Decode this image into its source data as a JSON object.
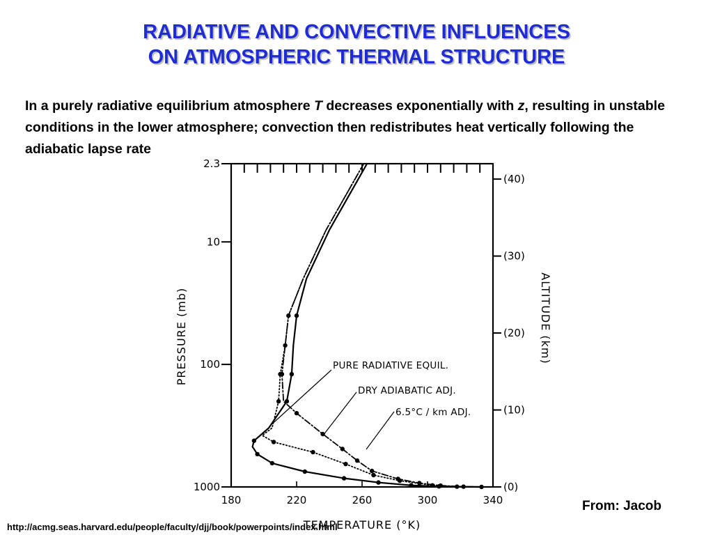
{
  "title": {
    "line1": "RADIATIVE AND CONVECTIVE INFLUENCES",
    "line2": "ON ATMOSPHERIC THERMAL STRUCTURE"
  },
  "intro": {
    "part1": "In a purely radiative equilibrium atmosphere ",
    "var_t": "T",
    "part2": " decreases exponentially with ",
    "var_z": "z",
    "part3": ", resulting in unstable conditions in the lower atmosphere; convection then redistributes heat vertically following the adiabatic lapse rate"
  },
  "chart_data": {
    "type": "line",
    "xlabel": "TEMPERATURE (°K)",
    "ylabel": "PRESSURE (mb)",
    "y2label": "ALTITUDE (km)",
    "xlim": [
      180,
      340
    ],
    "ylim": [
      1000,
      2.3
    ],
    "yscale": "log",
    "y2lim": [
      0,
      42
    ],
    "x_ticks": [
      "180",
      "220",
      "260",
      "300",
      "340"
    ],
    "y_ticks": [
      {
        "label": "2.3",
        "value": 2.3
      },
      {
        "label": "10",
        "value": 10
      },
      {
        "label": "100",
        "value": 100
      },
      {
        "label": "1000",
        "value": 1000
      }
    ],
    "y2_ticks": [
      {
        "label": "(40)",
        "value": 40
      },
      {
        "label": "(30)",
        "value": 30
      },
      {
        "label": "(20)",
        "value": 20
      },
      {
        "label": "(10)",
        "value": 10
      },
      {
        "label": "(0)",
        "value": 0
      }
    ],
    "series": [
      {
        "name": "PURE RADIATIVE EQUIL.",
        "style": "solid",
        "points": [
          [
            333,
            1000
          ],
          [
            307,
            990
          ],
          [
            290,
            970
          ],
          [
            270,
            920
          ],
          [
            249,
            850
          ],
          [
            225,
            750
          ],
          [
            205,
            640
          ],
          [
            196,
            540
          ],
          [
            193,
            470
          ],
          [
            194,
            420
          ],
          [
            203,
            330
          ],
          [
            214,
            200
          ],
          [
            217,
            120
          ],
          [
            218,
            70
          ],
          [
            220,
            40
          ],
          [
            226,
            20
          ],
          [
            240,
            8
          ],
          [
            263,
            2.3
          ]
        ],
        "markers": [
          [
            333,
            1000
          ],
          [
            307,
            990
          ],
          [
            290,
            970
          ],
          [
            270,
            920
          ],
          [
            249,
            850
          ],
          [
            225,
            750
          ],
          [
            205,
            640
          ],
          [
            196,
            540
          ],
          [
            194,
            420
          ],
          [
            214,
            200
          ],
          [
            217,
            120
          ],
          [
            220,
            40
          ]
        ]
      },
      {
        "name": "DRY ADIABATIC ADJ.",
        "style": "dashdot",
        "points": [
          [
            333,
            1000
          ],
          [
            322,
            995
          ],
          [
            308,
            975
          ],
          [
            295,
            930
          ],
          [
            282,
            860
          ],
          [
            266,
            740
          ],
          [
            257,
            610
          ],
          [
            248,
            490
          ],
          [
            236,
            370
          ],
          [
            220,
            250
          ],
          [
            212,
            200
          ],
          [
            211,
            120
          ],
          [
            213,
            70
          ],
          [
            215,
            40
          ],
          [
            224,
            20
          ],
          [
            238,
            8
          ],
          [
            261,
            2.3
          ]
        ],
        "markers": [
          [
            322,
            995
          ],
          [
            308,
            975
          ],
          [
            295,
            930
          ],
          [
            282,
            860
          ],
          [
            266,
            740
          ],
          [
            257,
            610
          ],
          [
            248,
            490
          ],
          [
            236,
            370
          ],
          [
            220,
            250
          ],
          [
            211,
            120
          ],
          [
            213,
            70
          ],
          [
            215,
            40
          ]
        ]
      },
      {
        "name": "6.5°C / km ADJ.",
        "style": "dotted",
        "points": [
          [
            333,
            1000
          ],
          [
            318,
            995
          ],
          [
            303,
            970
          ],
          [
            283,
            890
          ],
          [
            267,
            800
          ],
          [
            250,
            650
          ],
          [
            230,
            520
          ],
          [
            206,
            430
          ],
          [
            199,
            380
          ],
          [
            205,
            330
          ],
          [
            209,
            200
          ],
          [
            210,
            120
          ],
          [
            213,
            70
          ],
          [
            215,
            40
          ],
          [
            224,
            20
          ],
          [
            238,
            8
          ],
          [
            261,
            2.3
          ]
        ],
        "markers": [
          [
            318,
            995
          ],
          [
            303,
            970
          ],
          [
            283,
            890
          ],
          [
            267,
            800
          ],
          [
            250,
            650
          ],
          [
            230,
            520
          ],
          [
            206,
            430
          ],
          [
            209,
            200
          ],
          [
            210,
            120
          ]
        ]
      }
    ]
  },
  "source": "From: Jacob",
  "url": "http://acmg.seas.harvard.edu/people/faculty/djj/book/powerpoints/index.html"
}
